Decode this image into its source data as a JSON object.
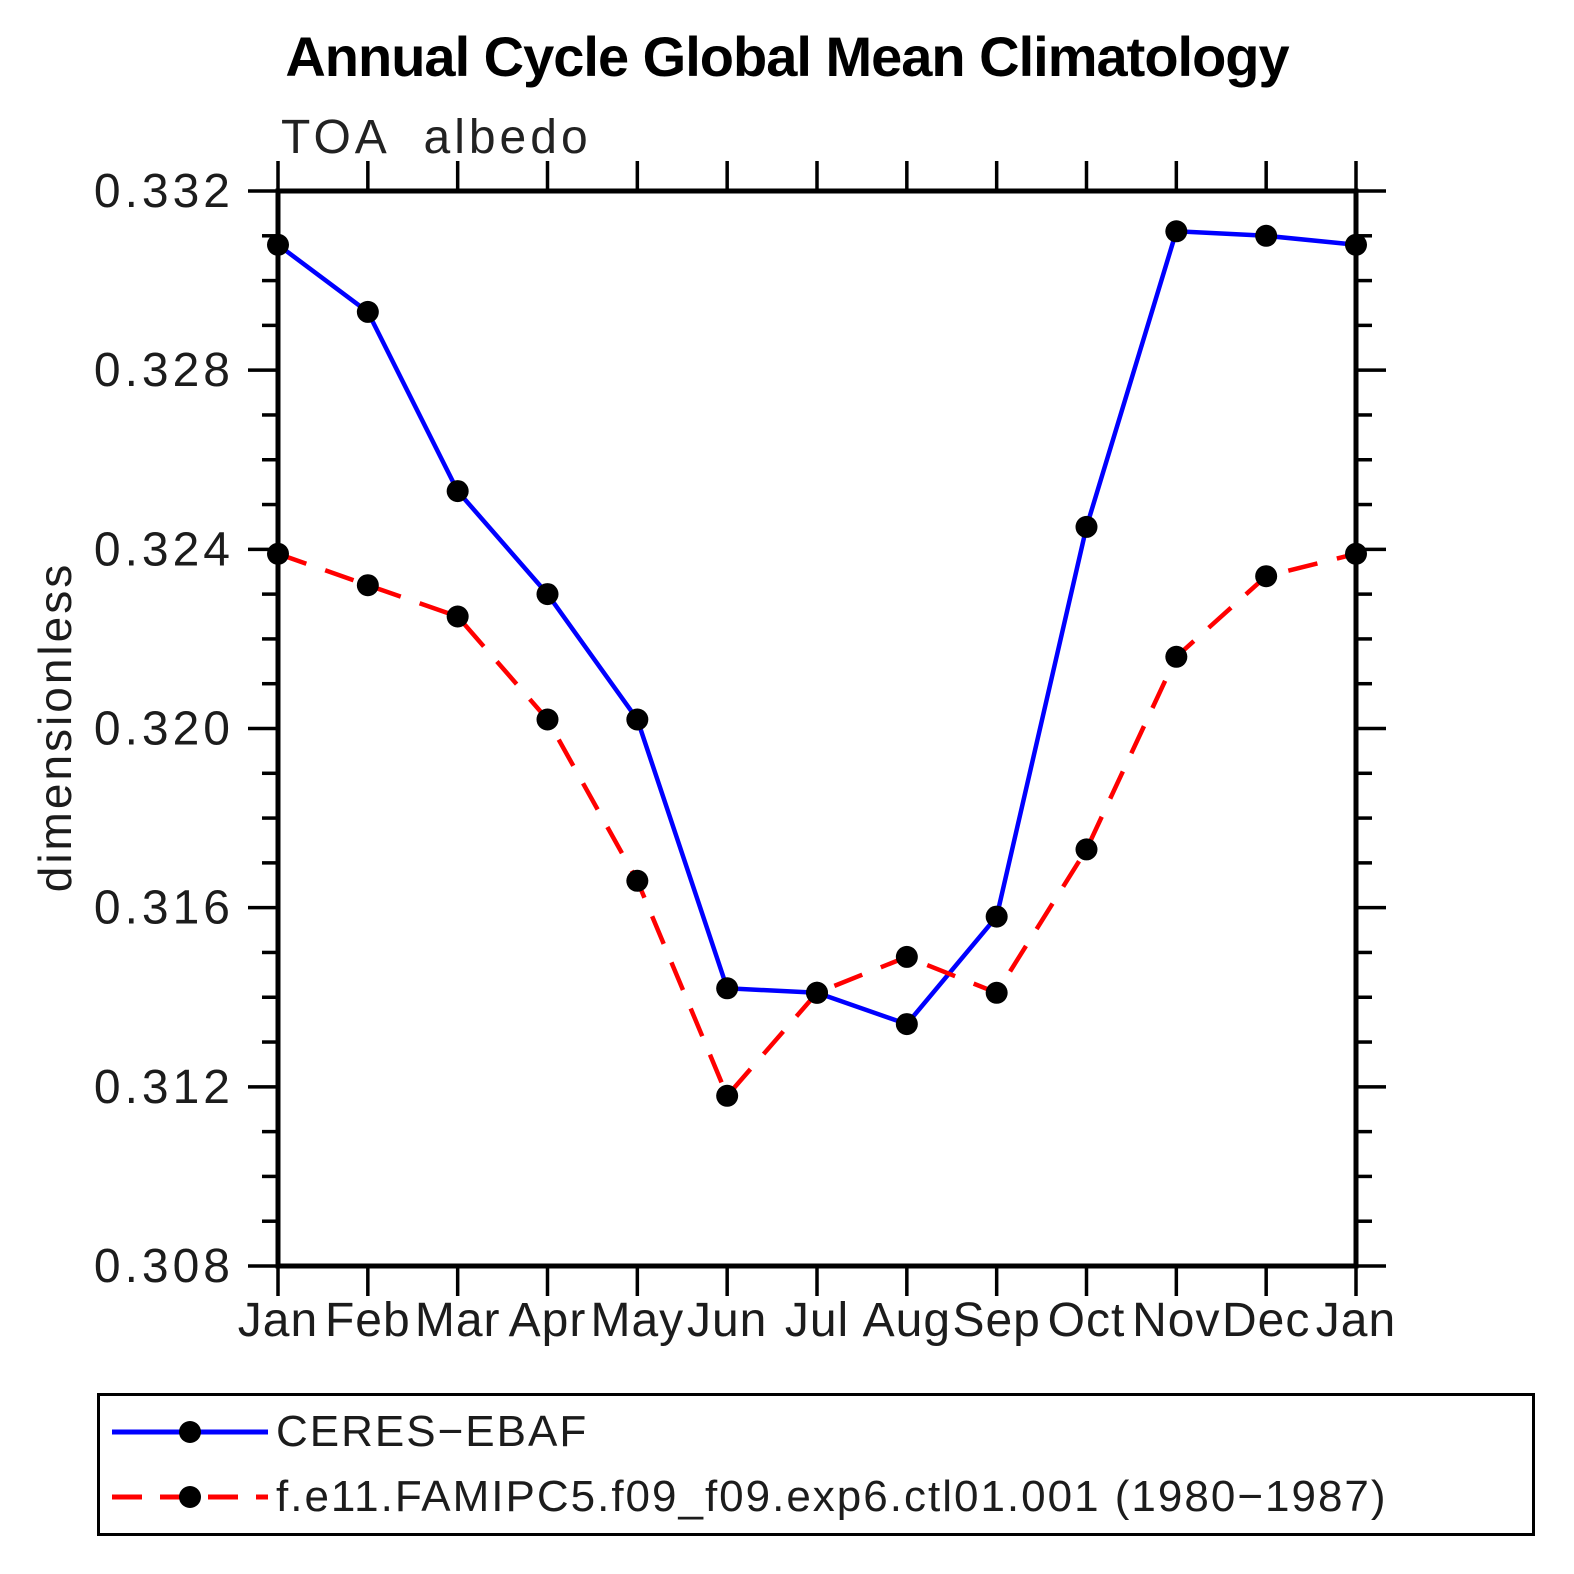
{
  "title": "Annual Cycle Global Mean Climatology",
  "subtitle": "TOA albedo",
  "ylabel": "dimensionless",
  "colors": {
    "obs_line": "#0000ff",
    "model_line": "#ff0000",
    "marker": "#000000",
    "axis": "#000000",
    "text": "#1c1c1c"
  },
  "chart_data": {
    "type": "line",
    "title": "Annual Cycle Global Mean Climatology",
    "subtitle": "TOA albedo",
    "xlabel": "",
    "ylabel": "dimensionless",
    "x_categories": [
      "Jan",
      "Feb",
      "Mar",
      "Apr",
      "May",
      "Jun",
      "Jul",
      "Aug",
      "Sep",
      "Oct",
      "Nov",
      "Dec",
      "Jan"
    ],
    "ylim": [
      0.308,
      0.332
    ],
    "y_ticks": [
      0.308,
      0.312,
      0.316,
      0.32,
      0.324,
      0.328,
      0.332
    ],
    "y_tick_labels": [
      "0.308",
      "0.312",
      "0.316",
      "0.320",
      "0.324",
      "0.328",
      "0.332"
    ],
    "y_minor_step": 0.001,
    "grid": false,
    "legend_position": "bottom",
    "series": [
      {
        "name": "CERES−EBAF",
        "color": "#0000ff",
        "style": "solid",
        "marker": "filled-circle",
        "marker_color": "#000000",
        "values": [
          0.3308,
          0.3293,
          0.3253,
          0.323,
          0.3202,
          0.3142,
          0.3141,
          0.3134,
          0.3158,
          0.3245,
          0.3311,
          0.331,
          0.3308
        ]
      },
      {
        "name": "f.e11.FAMIPC5.f09_f09.exp6.ctl01.001 (1980−1987)",
        "color": "#ff0000",
        "style": "dashed",
        "marker": "filled-circle",
        "marker_color": "#000000",
        "values": [
          0.3239,
          0.3232,
          0.3225,
          0.3202,
          0.3166,
          0.3118,
          0.3141,
          0.3149,
          0.3141,
          0.3173,
          0.3216,
          0.3234,
          0.3239
        ]
      }
    ]
  },
  "legend": {
    "items": [
      {
        "label": "CERES−EBAF"
      },
      {
        "label": "f.e11.FAMIPC5.f09_f09.exp6.ctl01.001 (1980−1987)"
      }
    ]
  }
}
